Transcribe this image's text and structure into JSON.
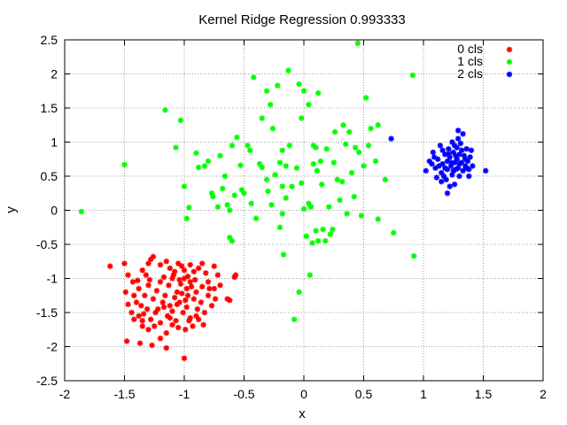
{
  "chart_data": {
    "type": "scatter",
    "title": "Kernel Ridge Regression 0.993333",
    "xlabel": "x",
    "ylabel": "y",
    "xlim": [
      -2,
      2
    ],
    "ylim": [
      -2.5,
      2.5
    ],
    "xticks": [
      -2,
      -1.5,
      -1,
      -0.5,
      0,
      0.5,
      1,
      1.5,
      2
    ],
    "xtick_labels": [
      "-2",
      "-1.5",
      "-1",
      "-0.5",
      "0",
      "0.5",
      "1",
      "1.5",
      "2"
    ],
    "yticks": [
      -2.5,
      -2,
      -1.5,
      -1,
      -0.5,
      0,
      0.5,
      1,
      1.5,
      2,
      2.5
    ],
    "ytick_labels": [
      "-2.5",
      "-2",
      "-1.5",
      "-1",
      "-0.5",
      "0",
      "0.5",
      "1",
      "1.5",
      "2",
      "2.5"
    ],
    "grid": true,
    "legend_position": "top-right",
    "series": [
      {
        "name": "0 cls",
        "color": "#ff0000",
        "points": [
          [
            -1.62,
            -0.82
          ],
          [
            -1.5,
            -0.78
          ],
          [
            -1.47,
            -0.95
          ],
          [
            -1.43,
            -1.05
          ],
          [
            -1.49,
            -1.2
          ],
          [
            -1.42,
            -1.25
          ],
          [
            -1.38,
            -1.15
          ],
          [
            -1.35,
            -0.88
          ],
          [
            -1.3,
            -0.78
          ],
          [
            -1.28,
            -0.72
          ],
          [
            -1.26,
            -0.68
          ],
          [
            -1.2,
            -0.8
          ],
          [
            -1.15,
            -0.75
          ],
          [
            -1.12,
            -0.85
          ],
          [
            -1.08,
            -0.9
          ],
          [
            -1.05,
            -0.78
          ],
          [
            -1.02,
            -0.82
          ],
          [
            -1.0,
            -0.88
          ],
          [
            -0.95,
            -0.8
          ],
          [
            -0.92,
            -0.9
          ],
          [
            -0.88,
            -0.85
          ],
          [
            -0.85,
            -0.78
          ],
          [
            -0.82,
            -0.92
          ],
          [
            -0.75,
            -0.82
          ],
          [
            -0.72,
            -0.95
          ],
          [
            -0.7,
            -1.1
          ],
          [
            -0.75,
            -1.15
          ],
          [
            -0.8,
            -1.05
          ],
          [
            -0.85,
            -1.12
          ],
          [
            -0.9,
            -1.2
          ],
          [
            -0.95,
            -1.05
          ],
          [
            -0.98,
            -1.15
          ],
          [
            -1.0,
            -1.0
          ],
          [
            -1.03,
            -1.08
          ],
          [
            -1.06,
            -1.2
          ],
          [
            -1.1,
            -1.0
          ],
          [
            -1.13,
            -1.1
          ],
          [
            -1.16,
            -1.25
          ],
          [
            -1.2,
            -1.05
          ],
          [
            -1.23,
            -1.18
          ],
          [
            -1.26,
            -1.3
          ],
          [
            -1.3,
            -1.1
          ],
          [
            -1.33,
            -1.25
          ],
          [
            -1.36,
            -1.4
          ],
          [
            -1.4,
            -1.35
          ],
          [
            -1.44,
            -1.5
          ],
          [
            -1.47,
            -1.38
          ],
          [
            -1.42,
            -1.6
          ],
          [
            -1.38,
            -1.55
          ],
          [
            -1.35,
            -1.7
          ],
          [
            -1.31,
            -1.45
          ],
          [
            -1.28,
            -1.6
          ],
          [
            -1.24,
            -1.5
          ],
          [
            -1.2,
            -1.65
          ],
          [
            -1.17,
            -1.42
          ],
          [
            -1.14,
            -1.55
          ],
          [
            -1.1,
            -1.48
          ],
          [
            -1.07,
            -1.62
          ],
          [
            -1.04,
            -1.35
          ],
          [
            -1.01,
            -1.5
          ],
          [
            -0.98,
            -1.42
          ],
          [
            -0.95,
            -1.58
          ],
          [
            -0.92,
            -1.3
          ],
          [
            -0.89,
            -1.45
          ],
          [
            -0.86,
            -1.35
          ],
          [
            -0.83,
            -1.5
          ],
          [
            -0.8,
            -1.25
          ],
          [
            -0.77,
            -1.4
          ],
          [
            -0.74,
            -1.3
          ],
          [
            -0.88,
            -1.6
          ],
          [
            -0.93,
            -1.7
          ],
          [
            -0.99,
            -1.75
          ],
          [
            -1.05,
            -1.72
          ],
          [
            -1.1,
            -1.68
          ],
          [
            -1.15,
            -1.8
          ],
          [
            -1.2,
            -1.88
          ],
          [
            -1.25,
            -1.7
          ],
          [
            -1.3,
            -1.75
          ],
          [
            -1.35,
            -1.62
          ],
          [
            -1.48,
            -1.92
          ],
          [
            -1.37,
            -1.95
          ],
          [
            -1.27,
            -1.98
          ],
          [
            -1.15,
            -2.02
          ],
          [
            -1.0,
            -2.17
          ],
          [
            -0.62,
            -1.32
          ],
          [
            -0.64,
            -1.3
          ],
          [
            -0.58,
            -0.98
          ],
          [
            -0.57,
            -0.95
          ],
          [
            -1.08,
            -1.28
          ],
          [
            -1.12,
            -1.4
          ],
          [
            -0.97,
            -1.25
          ],
          [
            -1.18,
            -1.35
          ],
          [
            -1.22,
            -1.45
          ],
          [
            -1.02,
            -1.22
          ],
          [
            -0.94,
            -1.12
          ],
          [
            -0.91,
            -1.02
          ],
          [
            -0.79,
            -1.15
          ],
          [
            -1.09,
            -0.95
          ],
          [
            -1.17,
            -0.98
          ],
          [
            -1.29,
            -1.02
          ],
          [
            -1.32,
            -0.95
          ],
          [
            -1.39,
            -1.03
          ],
          [
            -0.84,
            -1.68
          ],
          [
            -0.9,
            -1.55
          ],
          [
            -0.96,
            -1.62
          ],
          [
            -1.12,
            -1.58
          ],
          [
            -1.34,
            -1.52
          ],
          [
            -0.97,
            -0.97
          ],
          [
            -1.04,
            -1.02
          ],
          [
            -0.99,
            -1.32
          ],
          [
            -1.06,
            -1.38
          ]
        ]
      },
      {
        "name": "1 cls",
        "color": "#00ff00",
        "points": [
          [
            -1.86,
            -0.02
          ],
          [
            -1.5,
            0.67
          ],
          [
            -1.16,
            1.47
          ],
          [
            -1.03,
            1.32
          ],
          [
            -1.07,
            0.92
          ],
          [
            -1.0,
            0.35
          ],
          [
            -0.98,
            -0.12
          ],
          [
            -0.96,
            0.04
          ],
          [
            -0.9,
            0.84
          ],
          [
            -0.88,
            0.63
          ],
          [
            -0.83,
            0.65
          ],
          [
            -0.8,
            0.72
          ],
          [
            -0.77,
            0.25
          ],
          [
            -0.76,
            0.2
          ],
          [
            -0.72,
            0.05
          ],
          [
            -0.7,
            0.8
          ],
          [
            -0.66,
            0.5
          ],
          [
            -0.64,
            0.08
          ],
          [
            -0.62,
            0.0
          ],
          [
            -0.62,
            -0.4
          ],
          [
            -0.6,
            -0.45
          ],
          [
            -0.6,
            0.95
          ],
          [
            -0.56,
            1.07
          ],
          [
            -0.53,
            0.66
          ],
          [
            -0.52,
            0.3
          ],
          [
            -0.5,
            0.25
          ],
          [
            -0.47,
            0.95
          ],
          [
            -0.45,
            0.88
          ],
          [
            -0.42,
            1.95
          ],
          [
            -0.44,
            0.1
          ],
          [
            -0.4,
            -0.12
          ],
          [
            -0.37,
            0.68
          ],
          [
            -0.35,
            0.63
          ],
          [
            -0.35,
            1.35
          ],
          [
            -0.31,
            0.45
          ],
          [
            -0.31,
            1.75
          ],
          [
            -0.28,
            1.55
          ],
          [
            -0.27,
            0.08
          ],
          [
            -0.26,
            1.2
          ],
          [
            -0.22,
            1.83
          ],
          [
            -0.2,
            0.7
          ],
          [
            -0.2,
            -0.25
          ],
          [
            -0.18,
            -0.05
          ],
          [
            -0.18,
            0.88
          ],
          [
            -0.17,
            -0.65
          ],
          [
            -0.15,
            0.65
          ],
          [
            -0.13,
            2.05
          ],
          [
            -0.12,
            0.95
          ],
          [
            -0.1,
            0.35
          ],
          [
            -0.08,
            -1.6
          ],
          [
            -0.06,
            0.62
          ],
          [
            -0.04,
            1.85
          ],
          [
            -0.04,
            -1.2
          ],
          [
            -0.02,
            1.35
          ],
          [
            -0.02,
            0.4
          ],
          [
            0.0,
            1.75
          ],
          [
            0.02,
            -0.38
          ],
          [
            0.04,
            1.55
          ],
          [
            0.04,
            0.1
          ],
          [
            0.05,
            -0.95
          ],
          [
            0.06,
            0.05
          ],
          [
            0.08,
            0.95
          ],
          [
            0.1,
            -0.3
          ],
          [
            0.1,
            0.92
          ],
          [
            0.11,
            0.58
          ],
          [
            0.12,
            1.72
          ],
          [
            0.12,
            -0.45
          ],
          [
            0.14,
            0.72
          ],
          [
            0.16,
            -0.28
          ],
          [
            0.18,
            -0.45
          ],
          [
            0.19,
            0.9
          ],
          [
            0.21,
            0.05
          ],
          [
            0.22,
            -0.35
          ],
          [
            0.24,
            -0.28
          ],
          [
            0.25,
            0.7
          ],
          [
            0.26,
            1.15
          ],
          [
            0.28,
            0.45
          ],
          [
            0.3,
            0.15
          ],
          [
            0.32,
            0.42
          ],
          [
            0.33,
            1.25
          ],
          [
            0.35,
            0.97
          ],
          [
            0.36,
            -0.05
          ],
          [
            0.38,
            1.15
          ],
          [
            0.4,
            0.55
          ],
          [
            0.42,
            0.2
          ],
          [
            0.43,
            0.92
          ],
          [
            0.45,
            2.45
          ],
          [
            0.46,
            0.85
          ],
          [
            0.48,
            -0.08
          ],
          [
            0.5,
            0.65
          ],
          [
            0.52,
            1.65
          ],
          [
            0.54,
            0.95
          ],
          [
            0.56,
            1.2
          ],
          [
            0.6,
            0.72
          ],
          [
            0.62,
            1.25
          ],
          [
            0.62,
            -0.13
          ],
          [
            0.68,
            0.45
          ],
          [
            0.75,
            -0.33
          ],
          [
            0.91,
            1.98
          ],
          [
            0.92,
            -0.67
          ],
          [
            -0.68,
            0.32
          ],
          [
            -0.58,
            0.22
          ],
          [
            -0.3,
            0.28
          ],
          [
            -0.24,
            0.52
          ],
          [
            0.08,
            0.68
          ],
          [
            0.15,
            0.38
          ],
          [
            -0.18,
            0.35
          ],
          [
            0.0,
            0.02
          ],
          [
            -0.15,
            0.18
          ],
          [
            0.07,
            -0.48
          ]
        ]
      },
      {
        "name": "2 cls",
        "color": "#0000ff",
        "points": [
          [
            0.73,
            1.05
          ],
          [
            1.02,
            0.58
          ],
          [
            1.05,
            0.72
          ],
          [
            1.08,
            0.85
          ],
          [
            1.1,
            0.62
          ],
          [
            1.12,
            0.75
          ],
          [
            1.14,
            0.95
          ],
          [
            1.15,
            0.55
          ],
          [
            1.16,
            0.68
          ],
          [
            1.18,
            0.82
          ],
          [
            1.19,
            0.45
          ],
          [
            1.2,
            0.72
          ],
          [
            1.2,
            0.6
          ],
          [
            1.21,
            0.9
          ],
          [
            1.22,
            0.78
          ],
          [
            1.23,
            0.65
          ],
          [
            1.24,
            1.0
          ],
          [
            1.24,
            0.52
          ],
          [
            1.25,
            0.85
          ],
          [
            1.26,
            0.7
          ],
          [
            1.26,
            0.38
          ],
          [
            1.27,
            0.6
          ],
          [
            1.28,
            0.92
          ],
          [
            1.28,
            0.75
          ],
          [
            1.29,
            0.62
          ],
          [
            1.3,
            0.82
          ],
          [
            1.3,
            0.5
          ],
          [
            1.31,
            0.98
          ],
          [
            1.32,
            0.7
          ],
          [
            1.33,
            0.58
          ],
          [
            1.34,
            0.8
          ],
          [
            1.35,
            0.65
          ],
          [
            1.36,
            0.9
          ],
          [
            1.37,
            0.72
          ],
          [
            1.38,
            0.6
          ],
          [
            1.38,
            0.5
          ],
          [
            1.39,
            0.78
          ],
          [
            1.4,
            0.88
          ],
          [
            1.41,
            0.65
          ],
          [
            1.2,
            0.25
          ],
          [
            1.22,
            0.35
          ],
          [
            1.17,
            0.5
          ],
          [
            1.13,
            0.65
          ],
          [
            1.09,
            0.78
          ],
          [
            1.07,
            0.68
          ],
          [
            1.26,
            0.95
          ],
          [
            1.29,
            1.05
          ],
          [
            1.33,
            1.12
          ],
          [
            1.29,
            1.17
          ],
          [
            1.52,
            0.58
          ],
          [
            1.18,
            0.62
          ],
          [
            1.23,
            0.7
          ],
          [
            1.27,
            0.8
          ],
          [
            1.32,
            0.88
          ],
          [
            1.35,
            0.75
          ],
          [
            1.11,
            0.48
          ],
          [
            1.15,
            0.42
          ],
          [
            1.25,
            0.58
          ],
          [
            1.3,
            0.68
          ],
          [
            1.36,
            0.62
          ],
          [
            1.21,
            0.83
          ],
          [
            1.16,
            0.88
          ]
        ]
      }
    ]
  }
}
